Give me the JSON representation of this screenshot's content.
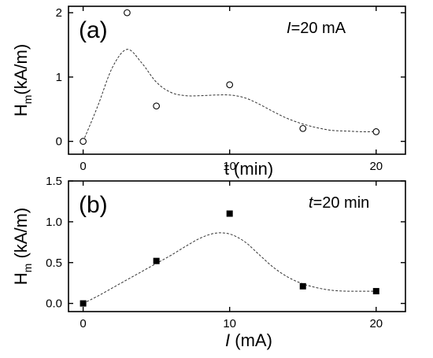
{
  "chart_data": [
    {
      "type": "scatter",
      "panel_label": "(a)",
      "annotation_var": "I",
      "annotation_value": "=20 mA",
      "xlabel": "t (min)",
      "ylabel_main": "H",
      "ylabel_sub": "m",
      "ylabel_unit": "(kA/m)",
      "xlim": [
        -1,
        22
      ],
      "ylim": [
        -0.2,
        2.1
      ],
      "xticks": [
        0,
        10,
        20
      ],
      "yticks": [
        0,
        1,
        2
      ],
      "ytick_labels": [
        "0",
        "1",
        "2"
      ],
      "marker": "open-circle",
      "points": [
        {
          "x": 0,
          "y": 0.0
        },
        {
          "x": 3,
          "y": 2.0
        },
        {
          "x": 5,
          "y": 0.55
        },
        {
          "x": 10,
          "y": 0.88
        },
        {
          "x": 15,
          "y": 0.2
        },
        {
          "x": 20,
          "y": 0.15
        }
      ],
      "fit_curve": [
        {
          "x": 0,
          "y": 0.0
        },
        {
          "x": 1,
          "y": 0.55
        },
        {
          "x": 2,
          "y": 1.15
        },
        {
          "x": 3,
          "y": 1.43
        },
        {
          "x": 4,
          "y": 1.22
        },
        {
          "x": 5,
          "y": 0.92
        },
        {
          "x": 6,
          "y": 0.76
        },
        {
          "x": 7,
          "y": 0.71
        },
        {
          "x": 8,
          "y": 0.71
        },
        {
          "x": 9,
          "y": 0.72
        },
        {
          "x": 10,
          "y": 0.72
        },
        {
          "x": 11,
          "y": 0.68
        },
        {
          "x": 12,
          "y": 0.58
        },
        {
          "x": 13,
          "y": 0.46
        },
        {
          "x": 14,
          "y": 0.35
        },
        {
          "x": 15,
          "y": 0.27
        },
        {
          "x": 16,
          "y": 0.21
        },
        {
          "x": 17,
          "y": 0.17
        },
        {
          "x": 18,
          "y": 0.16
        },
        {
          "x": 19,
          "y": 0.15
        },
        {
          "x": 20,
          "y": 0.15
        }
      ]
    },
    {
      "type": "scatter",
      "panel_label": "(b)",
      "annotation_var": "t",
      "annotation_value": "=20 min",
      "xlabel_var": "I",
      "xlabel_unit": " (mA)",
      "ylabel_main": "H",
      "ylabel_sub": "m",
      "ylabel_unit": " (kA/m)",
      "xlim": [
        -1,
        22
      ],
      "ylim": [
        -0.1,
        1.5
      ],
      "xticks": [
        0,
        10,
        20
      ],
      "yticks": [
        0,
        0.5,
        1.0,
        1.5
      ],
      "ytick_labels": [
        "0.0",
        "0.5",
        "1.0",
        "1.5"
      ],
      "marker": "filled-square",
      "points": [
        {
          "x": 0,
          "y": 0.0
        },
        {
          "x": 5,
          "y": 0.52
        },
        {
          "x": 10,
          "y": 1.1
        },
        {
          "x": 15,
          "y": 0.21
        },
        {
          "x": 20,
          "y": 0.15
        }
      ],
      "fit_curve": [
        {
          "x": 0,
          "y": 0.0
        },
        {
          "x": 1,
          "y": 0.09
        },
        {
          "x": 2,
          "y": 0.19
        },
        {
          "x": 3,
          "y": 0.29
        },
        {
          "x": 4,
          "y": 0.39
        },
        {
          "x": 5,
          "y": 0.49
        },
        {
          "x": 6,
          "y": 0.59
        },
        {
          "x": 7,
          "y": 0.7
        },
        {
          "x": 8,
          "y": 0.8
        },
        {
          "x": 9,
          "y": 0.86
        },
        {
          "x": 10,
          "y": 0.85
        },
        {
          "x": 11,
          "y": 0.76
        },
        {
          "x": 12,
          "y": 0.6
        },
        {
          "x": 13,
          "y": 0.44
        },
        {
          "x": 14,
          "y": 0.32
        },
        {
          "x": 15,
          "y": 0.24
        },
        {
          "x": 16,
          "y": 0.19
        },
        {
          "x": 17,
          "y": 0.16
        },
        {
          "x": 18,
          "y": 0.15
        },
        {
          "x": 19,
          "y": 0.15
        },
        {
          "x": 20,
          "y": 0.15
        }
      ]
    }
  ]
}
